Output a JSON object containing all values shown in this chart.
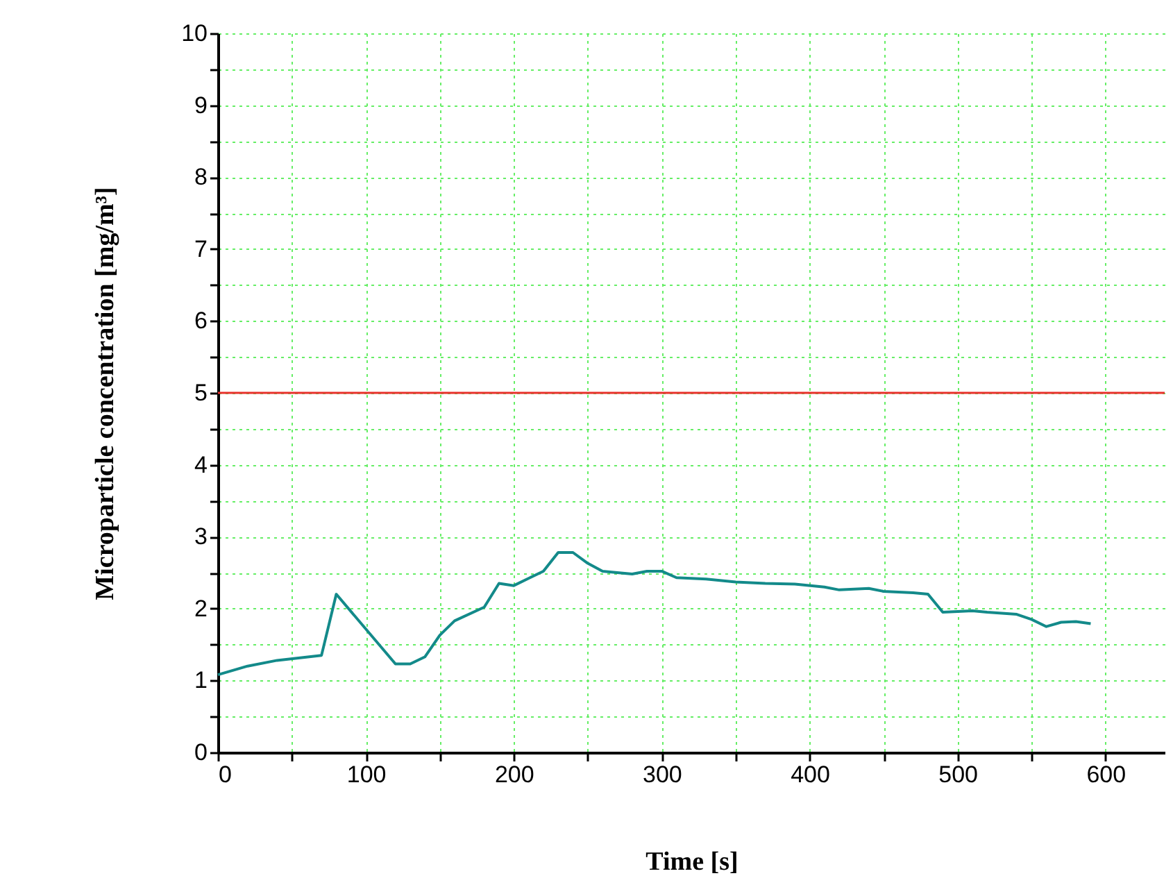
{
  "chart_data": {
    "type": "line",
    "xlabel": "Time [s]",
    "ylabel": "Microparticle concentration [mg/m³]",
    "x": [
      0,
      20,
      40,
      70,
      80,
      120,
      130,
      140,
      150,
      160,
      180,
      190,
      200,
      210,
      220,
      230,
      240,
      250,
      260,
      280,
      290,
      300,
      310,
      330,
      350,
      370,
      390,
      410,
      420,
      440,
      450,
      470,
      480,
      490,
      510,
      520,
      540,
      550,
      560,
      570,
      580,
      590
    ],
    "series": [
      {
        "color": "#138a8a",
        "values": [
          1.08,
          1.2,
          1.28,
          1.35,
          2.2,
          1.23,
          1.23,
          1.33,
          1.63,
          1.83,
          2.02,
          2.35,
          2.32,
          2.42,
          2.52,
          2.78,
          2.78,
          2.63,
          2.52,
          2.48,
          2.52,
          2.52,
          2.43,
          2.41,
          2.37,
          2.35,
          2.34,
          2.3,
          2.26,
          2.28,
          2.24,
          2.22,
          2.2,
          1.95,
          1.97,
          1.95,
          1.92,
          1.85,
          1.75,
          1.81,
          1.82,
          1.79
        ]
      }
    ],
    "xlim": [
      0,
      640
    ],
    "xticks": [
      0,
      {
        "value": 50,
        "label": null
      },
      100,
      {
        "value": 150,
        "label": null
      },
      200,
      {
        "value": 250,
        "label": null
      },
      300,
      {
        "value": 350,
        "label": null
      },
      400,
      {
        "value": 450,
        "label": null
      },
      500,
      {
        "value": 550,
        "label": null
      },
      600
    ],
    "ylim": [
      0,
      10
    ],
    "yticks": [
      0,
      {
        "value": 0.5,
        "label": null
      },
      1,
      {
        "value": 1.5,
        "label": null
      },
      2,
      {
        "value": 2.5,
        "label": null
      },
      3,
      {
        "value": 3.5,
        "label": null
      },
      4,
      {
        "value": 4.5,
        "label": null
      },
      5,
      {
        "value": 5.5,
        "label": null
      },
      6,
      {
        "value": 6.5,
        "label": null
      },
      7,
      {
        "value": 7.5,
        "label": null
      },
      8,
      {
        "value": 8.5,
        "label": null
      },
      9,
      {
        "value": 9.5,
        "label": null
      },
      10
    ],
    "ref_lines": [
      {
        "axis": "y",
        "value": 5,
        "color": "#e8302a"
      }
    ],
    "grid": true,
    "marker": "none",
    "line_style": "solid"
  }
}
